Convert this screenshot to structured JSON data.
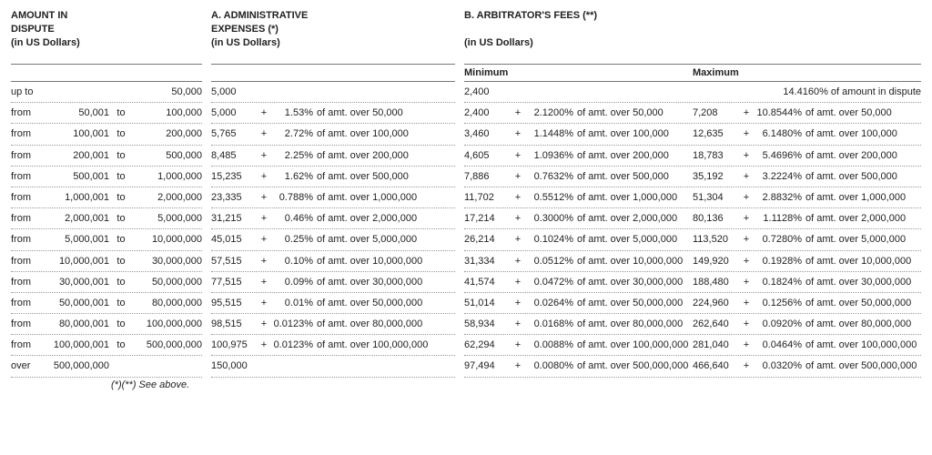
{
  "headers": {
    "dispute_l1": "AMOUNT IN",
    "dispute_l2": "DISPUTE",
    "dispute_l3": "(in US Dollars)",
    "admin_l1": "A. ADMINISTRATIVE",
    "admin_l2": "EXPENSES (*)",
    "admin_l3": "(in US Dollars)",
    "arb_l1": "B. ARBITRATOR'S FEES (**)",
    "arb_blank": " ",
    "arb_l3": "(in US Dollars)",
    "sub_min": "Minimum",
    "sub_max": "Maximum"
  },
  "footnote": "(*)(**) See above.",
  "rows": [
    {
      "d": {
        "w": "up to",
        "f": "",
        "t": "",
        "tv": "50,000"
      },
      "a": {
        "b": "5,000",
        "p": "",
        "pc": "",
        "s": ""
      },
      "mn": {
        "b": "2,400",
        "p": "",
        "pc": "",
        "s": ""
      },
      "mx": {
        "b": "",
        "p": "",
        "pc": "",
        "s": "14.4160% of amount in dispute"
      }
    },
    {
      "d": {
        "w": "from",
        "f": "50,001",
        "t": "to",
        "tv": "100,000"
      },
      "a": {
        "b": "5,000",
        "p": "+",
        "pc": "1.53%",
        "s": "of amt. over 50,000"
      },
      "mn": {
        "b": "2,400",
        "p": "+",
        "pc": "2.1200%",
        "s": "of amt. over 50,000"
      },
      "mx": {
        "b": "7,208",
        "p": "+",
        "pc": "10.8544%",
        "s": "of amt. over 50,000"
      }
    },
    {
      "d": {
        "w": "from",
        "f": "100,001",
        "t": "to",
        "tv": "200,000"
      },
      "a": {
        "b": "5,765",
        "p": "+",
        "pc": "2.72%",
        "s": "of amt. over 100,000"
      },
      "mn": {
        "b": "3,460",
        "p": "+",
        "pc": "1.1448%",
        "s": "of amt. over 100,000"
      },
      "mx": {
        "b": "12,635",
        "p": "+",
        "pc": "6.1480%",
        "s": "of amt. over 100,000"
      }
    },
    {
      "d": {
        "w": "from",
        "f": "200,001",
        "t": "to",
        "tv": "500,000"
      },
      "a": {
        "b": "8,485",
        "p": "+",
        "pc": "2.25%",
        "s": "of amt. over 200,000"
      },
      "mn": {
        "b": "4,605",
        "p": "+",
        "pc": "1.0936%",
        "s": "of amt. over 200,000"
      },
      "mx": {
        "b": "18,783",
        "p": "+",
        "pc": "5.4696%",
        "s": "of amt. over 200,000"
      }
    },
    {
      "d": {
        "w": "from",
        "f": "500,001",
        "t": "to",
        "tv": "1,000,000"
      },
      "a": {
        "b": "15,235",
        "p": "+",
        "pc": "1.62%",
        "s": "of amt. over 500,000"
      },
      "mn": {
        "b": "7,886",
        "p": "+",
        "pc": "0.7632%",
        "s": "of amt. over 500,000"
      },
      "mx": {
        "b": "35,192",
        "p": "+",
        "pc": "3.2224%",
        "s": "of amt. over 500,000"
      }
    },
    {
      "d": {
        "w": "from",
        "f": "1,000,001",
        "t": "to",
        "tv": "2,000,000"
      },
      "a": {
        "b": "23,335",
        "p": "+",
        "pc": "0.788%",
        "s": "of amt. over 1,000,000"
      },
      "mn": {
        "b": "11,702",
        "p": "+",
        "pc": "0.5512%",
        "s": "of amt. over 1,000,000"
      },
      "mx": {
        "b": "51,304",
        "p": "+",
        "pc": "2.8832%",
        "s": "of amt. over 1,000,000"
      }
    },
    {
      "d": {
        "w": "from",
        "f": "2,000,001",
        "t": "to",
        "tv": "5,000,000"
      },
      "a": {
        "b": "31,215",
        "p": "+",
        "pc": "0.46%",
        "s": "of amt. over 2,000,000"
      },
      "mn": {
        "b": "17,214",
        "p": "+",
        "pc": "0.3000%",
        "s": "of amt. over 2,000,000"
      },
      "mx": {
        "b": "80,136",
        "p": "+",
        "pc": "1.1128%",
        "s": "of amt. over 2,000,000"
      }
    },
    {
      "d": {
        "w": "from",
        "f": "5,000,001",
        "t": "to",
        "tv": "10,000,000"
      },
      "a": {
        "b": "45,015",
        "p": "+",
        "pc": "0.25%",
        "s": "of amt. over 5,000,000"
      },
      "mn": {
        "b": "26,214",
        "p": "+",
        "pc": "0.1024%",
        "s": "of amt. over 5,000,000"
      },
      "mx": {
        "b": "113,520",
        "p": "+",
        "pc": "0.7280%",
        "s": "of amt. over 5,000,000"
      }
    },
    {
      "d": {
        "w": "from",
        "f": "10,000,001",
        "t": "to",
        "tv": "30,000,000"
      },
      "a": {
        "b": "57,515",
        "p": "+",
        "pc": "0.10%",
        "s": "of amt. over 10,000,000"
      },
      "mn": {
        "b": "31,334",
        "p": "+",
        "pc": "0.0512%",
        "s": "of amt. over 10,000,000"
      },
      "mx": {
        "b": "149,920",
        "p": "+",
        "pc": "0.1928%",
        "s": "of amt. over 10,000,000"
      }
    },
    {
      "d": {
        "w": "from",
        "f": "30,000,001",
        "t": "to",
        "tv": "50,000,000"
      },
      "a": {
        "b": "77,515",
        "p": "+",
        "pc": "0.09%",
        "s": "of amt. over 30,000,000"
      },
      "mn": {
        "b": "41,574",
        "p": "+",
        "pc": "0.0472%",
        "s": "of amt. over 30,000,000"
      },
      "mx": {
        "b": "188,480",
        "p": "+",
        "pc": "0.1824%",
        "s": "of amt. over 30,000,000"
      }
    },
    {
      "d": {
        "w": "from",
        "f": "50,000,001",
        "t": "to",
        "tv": "80,000,000"
      },
      "a": {
        "b": "95,515",
        "p": "+",
        "pc": "0.01%",
        "s": "of amt. over 50,000,000"
      },
      "mn": {
        "b": "51,014",
        "p": "+",
        "pc": "0.0264%",
        "s": "of amt. over 50,000,000"
      },
      "mx": {
        "b": "224,960",
        "p": "+",
        "pc": "0.1256%",
        "s": "of amt. over 50,000,000"
      }
    },
    {
      "d": {
        "w": "from",
        "f": "80,000,001",
        "t": "to",
        "tv": "100,000,000"
      },
      "a": {
        "b": "98,515",
        "p": "+",
        "pc": "0.0123%",
        "s": "of amt. over 80,000,000"
      },
      "mn": {
        "b": "58,934",
        "p": "+",
        "pc": "0.0168%",
        "s": "of amt. over 80,000,000"
      },
      "mx": {
        "b": "262,640",
        "p": "+",
        "pc": "0.0920%",
        "s": "of amt. over 80,000,000"
      }
    },
    {
      "d": {
        "w": "from",
        "f": "100,000,001",
        "t": "to",
        "tv": "500,000,000"
      },
      "a": {
        "b": "100,975",
        "p": "+",
        "pc": "0.0123%",
        "s": "of amt. over 100,000,000"
      },
      "mn": {
        "b": "62,294",
        "p": "+",
        "pc": "0.0088%",
        "s": "of amt. over 100,000,000"
      },
      "mx": {
        "b": "281,040",
        "p": "+",
        "pc": "0.0464%",
        "s": "of amt. over 100,000,000"
      }
    },
    {
      "d": {
        "w": "over",
        "f": "500,000,000",
        "t": "",
        "tv": ""
      },
      "a": {
        "b": "150,000",
        "p": "",
        "pc": "",
        "s": ""
      },
      "mn": {
        "b": "97,494",
        "p": "+",
        "pc": "0.0080%",
        "s": "of amt. over 500,000,000"
      },
      "mx": {
        "b": "466,640",
        "p": "+",
        "pc": "0.0320%",
        "s": "of amt. over 500,000,000"
      }
    }
  ]
}
